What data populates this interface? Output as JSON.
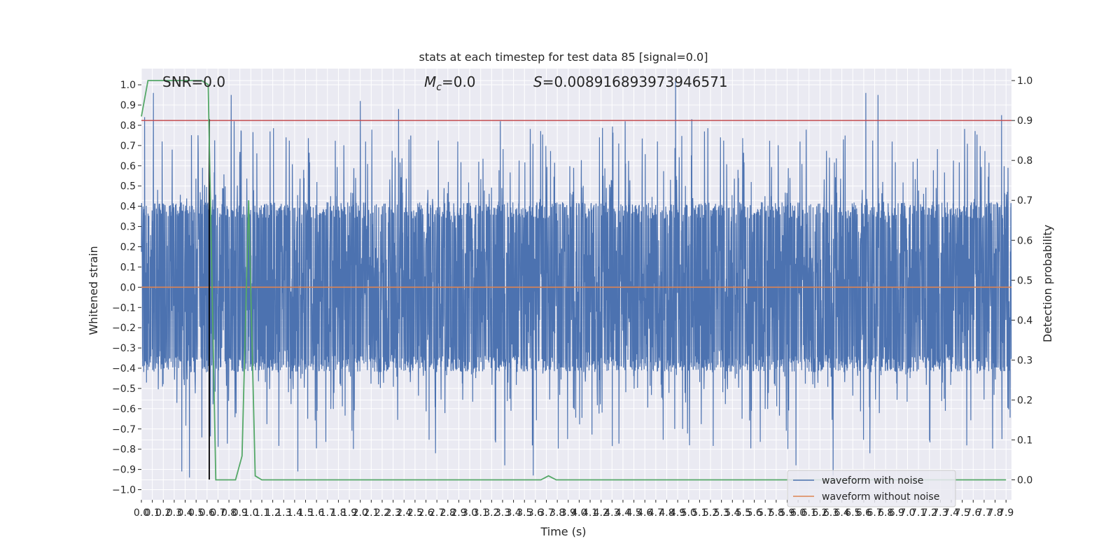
{
  "chart_data": {
    "type": "line",
    "title": "stats at each timestep for test data 85 [signal=0.0]",
    "xlabel": "Time (s)",
    "ylabel": "Whitened strain",
    "ylabel_right": "Detection probability",
    "xlim": [
      0.0,
      7.95
    ],
    "ylim": [
      -1.05,
      1.08
    ],
    "ylim_right": [
      -0.05,
      1.03
    ],
    "x_ticks": [
      0.0,
      0.1,
      0.2,
      0.3,
      0.4,
      0.5,
      0.6,
      0.7,
      0.8,
      0.9,
      1.0,
      1.1,
      1.2,
      1.3,
      1.4,
      1.5,
      1.6,
      1.7,
      1.8,
      1.9,
      2.0,
      2.1,
      2.2,
      2.3,
      2.4,
      2.5,
      2.6,
      2.7,
      2.8,
      2.9,
      3.0,
      3.1,
      3.2,
      3.3,
      3.4,
      3.5,
      3.6,
      3.7,
      3.8,
      3.9,
      4.0,
      4.1,
      4.2,
      4.3,
      4.4,
      4.5,
      4.6,
      4.7,
      4.8,
      4.9,
      5.0,
      5.1,
      5.2,
      5.3,
      5.4,
      5.5,
      5.6,
      5.7,
      5.8,
      5.9,
      6.0,
      6.1,
      6.2,
      6.3,
      6.4,
      6.5,
      6.6,
      6.7,
      6.8,
      6.9,
      7.0,
      7.1,
      7.2,
      7.3,
      7.4,
      7.5,
      7.6,
      7.7,
      7.8,
      7.9
    ],
    "x_tick_labels": [
      "0.0",
      "0.1",
      "0.2",
      "0.3",
      "0.4",
      "0.5",
      "0.6",
      "0.7",
      "0.8",
      "0.9",
      "1.0",
      "1.1",
      "1.2",
      "1.3",
      "1.4",
      "1.5",
      "1.6",
      "1.7",
      "1.8",
      "1.9",
      "2.0",
      "2.1",
      "2.2",
      "2.3",
      "2.4",
      "2.5",
      "2.6",
      "2.7",
      "2.8",
      "2.9",
      "3.0",
      "3.1",
      "3.2",
      "3.3",
      "3.4",
      "3.5",
      "3.6",
      "3.7",
      "3.8",
      "3.9",
      "4.0",
      "4.1",
      "4.2",
      "4.3",
      "4.4",
      "4.5",
      "4.6",
      "4.7",
      "4.8",
      "4.9",
      "5.0",
      "5.1",
      "5.2",
      "5.3",
      "5.4",
      "5.5",
      "5.6",
      "5.7",
      "5.8",
      "5.9",
      "6.0",
      "6.1",
      "6.2",
      "6.3",
      "6.4",
      "6.5",
      "6.6",
      "6.7",
      "6.8",
      "6.9",
      "7.0",
      "7.1",
      "7.2",
      "7.3",
      "7.4",
      "7.5",
      "7.6",
      "7.7",
      "7.8",
      "7.9"
    ],
    "y_ticks": [
      -1.0,
      -0.9,
      -0.8,
      -0.7,
      -0.6,
      -0.5,
      -0.4,
      -0.3,
      -0.2,
      -0.1,
      0.0,
      0.1,
      0.2,
      0.3,
      0.4,
      0.5,
      0.6,
      0.7,
      0.8,
      0.9,
      1.0
    ],
    "y_tick_labels": [
      "−1.0",
      "−0.9",
      "−0.8",
      "−0.7",
      "−0.6",
      "−0.5",
      "−0.4",
      "−0.3",
      "−0.2",
      "−0.1",
      "0.0",
      "0.1",
      "0.2",
      "0.3",
      "0.4",
      "0.5",
      "0.6",
      "0.7",
      "0.8",
      "0.9",
      "1.0"
    ],
    "y_ticks_right": [
      0.0,
      0.1,
      0.2,
      0.3,
      0.4,
      0.5,
      0.6,
      0.7,
      0.8,
      0.9,
      1.0
    ],
    "y_tick_labels_right": [
      "0.0",
      "0.1",
      "0.2",
      "0.3",
      "0.4",
      "0.5",
      "0.6",
      "0.7",
      "0.8",
      "0.9",
      "1.0"
    ],
    "grid": true,
    "legend_position": "lower-right",
    "annotations": {
      "snr": "SNR=0.0",
      "mc_symbol": "M",
      "mc_sub": "c",
      "mc_value": "=0.0",
      "s_symbol": "S",
      "s_value": "=0.008916893973946571"
    },
    "series": [
      {
        "name": "waveform with noise",
        "color": "#4c72b0",
        "style": "noise",
        "sample_rate": 512,
        "core_amplitude": 0.4,
        "spikes": [
          {
            "x": 0.03,
            "y": 0.84
          },
          {
            "x": 0.11,
            "y": 0.96
          },
          {
            "x": 0.19,
            "y": 0.72
          },
          {
            "x": 0.37,
            "y": -0.91
          },
          {
            "x": 0.44,
            "y": -0.94
          },
          {
            "x": 0.82,
            "y": 0.95
          },
          {
            "x": 1.43,
            "y": -0.91
          },
          {
            "x": 2.0,
            "y": 0.92
          },
          {
            "x": 2.35,
            "y": 0.88
          },
          {
            "x": 3.28,
            "y": 0.82
          },
          {
            "x": 3.32,
            "y": -0.88
          },
          {
            "x": 3.58,
            "y": -0.93
          },
          {
            "x": 4.42,
            "y": 0.82
          },
          {
            "x": 4.88,
            "y": 1.02
          },
          {
            "x": 5.03,
            "y": 0.83
          },
          {
            "x": 5.98,
            "y": -0.88
          },
          {
            "x": 6.32,
            "y": -0.93
          },
          {
            "x": 6.62,
            "y": 0.96
          },
          {
            "x": 6.73,
            "y": 0.95
          },
          {
            "x": 7.86,
            "y": 0.85
          }
        ]
      },
      {
        "name": "waveform without noise",
        "color": "#dd8452",
        "style": "flat",
        "value": 0.0
      },
      {
        "name": "detection probability",
        "color": "#55a868",
        "axis": "right",
        "x": [
          0.0,
          0.06,
          0.12,
          0.55,
          0.61,
          0.68,
          0.74,
          0.8,
          0.86,
          0.92,
          0.98,
          1.04,
          1.1,
          3.65,
          3.72,
          3.79,
          7.9
        ],
        "y": [
          0.91,
          1.0,
          1.0,
          1.0,
          0.99,
          0.0,
          0.0,
          0.0,
          0.0,
          0.06,
          0.7,
          0.01,
          0.0,
          0.0,
          0.01,
          0.0,
          0.0
        ]
      }
    ],
    "reference_lines": [
      {
        "orientation": "horizontal",
        "axis": "right",
        "value": 0.9,
        "color": "#c44e52"
      },
      {
        "orientation": "vertical",
        "value": 0.62,
        "y_range": [
          -0.95,
          0.83
        ],
        "color": "#000000"
      }
    ]
  }
}
